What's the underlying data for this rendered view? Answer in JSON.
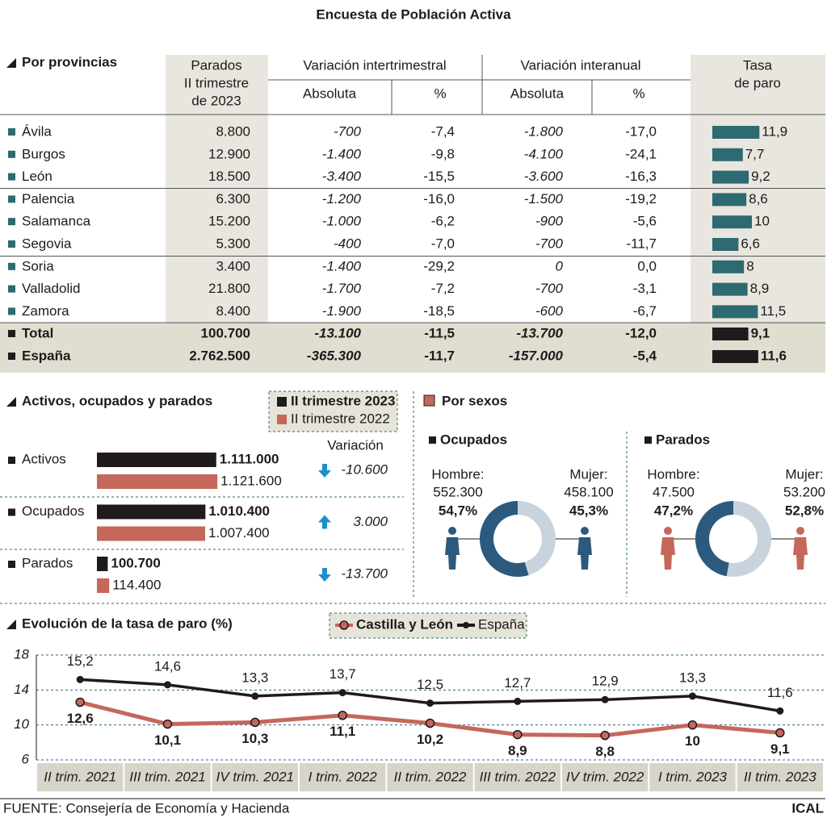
{
  "title": "Encuesta de Población Activa",
  "table": {
    "title": "Por provincias",
    "columns": {
      "parados": [
        "Parados",
        "II trimestre",
        "de 2023"
      ],
      "quarterly": "Variación intertrimestral",
      "annual": "Variación interanual",
      "sub": [
        "Absoluta",
        "%",
        "Absoluta",
        "%"
      ],
      "rate": [
        "Tasa",
        "de paro"
      ]
    },
    "bar_color": "#2d6a72",
    "total_bar_color": "#1f1a1b",
    "rows": [
      {
        "name": "Ávila",
        "cells": [
          "8.800",
          "-700",
          "-7,4",
          "-1.800",
          "-17,0"
        ],
        "rate": 11.9,
        "rate_label": "11,9"
      },
      {
        "name": "Burgos",
        "cells": [
          "12.900",
          "-1.400",
          "-9,8",
          "-4.100",
          "-24,1"
        ],
        "rate": 7.7,
        "rate_label": "7,7"
      },
      {
        "name": "León",
        "cells": [
          "18.500",
          "-3.400",
          "-15,5",
          "-3.600",
          "-16,3"
        ],
        "rate": 9.2,
        "rate_label": "9,2"
      },
      {
        "name": "Palencia",
        "cells": [
          "6.300",
          "-1.200",
          "-16,0",
          "-1.500",
          "-19,2"
        ],
        "rate": 8.6,
        "rate_label": "8,6"
      },
      {
        "name": "Salamanca",
        "cells": [
          "15.200",
          "-1.000",
          "-6,2",
          "-900",
          "-5,6"
        ],
        "rate": 10
      },
      {
        "name": "Segovia",
        "cells": [
          "5.300",
          "-400",
          "-7,0",
          "-700",
          "-11,7"
        ],
        "rate": 6.6,
        "rate_label": "6,6"
      },
      {
        "name": "Soria",
        "cells": [
          "3.400",
          "-1.400",
          "-29,2",
          "0",
          "0,0"
        ],
        "rate": 8
      },
      {
        "name": "Valladolid",
        "cells": [
          "21.800",
          "-1.700",
          "-7,2",
          "-700",
          "-3,1"
        ],
        "rate": 8.9,
        "rate_label": "8,9"
      },
      {
        "name": "Zamora",
        "cells": [
          "8.400",
          "-1.900",
          "-18,5",
          "-600",
          "-6,7"
        ],
        "rate": 11.5,
        "rate_label": "11,5"
      }
    ],
    "totals": [
      {
        "name": "Total",
        "cells": [
          "100.700",
          "-13.100",
          "-11,5",
          "-13.700",
          "-12,0"
        ],
        "rate": 9.1,
        "rate_label": "9,1"
      },
      {
        "name": "España",
        "cells": [
          "2.762.500",
          "-365.300",
          "-11,7",
          "-157.000",
          "-5,4"
        ],
        "rate": 11.6,
        "rate_label": "11,6"
      }
    ]
  },
  "chart_data": [
    {
      "type": "hbar",
      "title": "Activos, ocupados y parados",
      "categories": [
        "Activos",
        "Ocupados",
        "Parados"
      ],
      "series": [
        {
          "name": "II trimestre 2023",
          "color": "#1f1a1b",
          "values": [
            1111000,
            1010400,
            100700
          ],
          "value_labels": [
            "1.111.000",
            "1.010.400",
            "100.700"
          ]
        },
        {
          "name": "II trimestre 2022",
          "color": "#c5675b",
          "values": [
            1121600,
            1007400,
            114400
          ],
          "value_labels": [
            "1.121.600",
            "1.007.400",
            "114.400"
          ]
        }
      ],
      "variation_title": "Variación",
      "variation": [
        -10600,
        3000,
        -13700
      ],
      "variation_labels": [
        "-10.600",
        "3.000",
        "-13.700"
      ],
      "arrow_color": "#1f8fc9"
    },
    {
      "type": "donut",
      "title": "Ocupados",
      "categories": [
        "Hombre:",
        "Mujer:"
      ],
      "amounts": [
        "552.300",
        "458.100"
      ],
      "values": [
        54.7,
        45.3
      ],
      "value_labels": [
        "54,7%",
        "45,3%"
      ],
      "colors": [
        "#2b5a7e",
        "#c9d3de"
      ],
      "figure_color": "#2b5a7e"
    },
    {
      "type": "donut",
      "title": "Parados",
      "categories": [
        "Hombre:",
        "Mujer:"
      ],
      "amounts": [
        "47.500",
        "53.200"
      ],
      "values": [
        47.2,
        52.8
      ],
      "value_labels": [
        "47,2%",
        "52,8%"
      ],
      "colors": [
        "#2b5a7e",
        "#c9d3de"
      ],
      "figure_color": "#c5675b"
    },
    {
      "type": "line",
      "title": "Evolución de la tasa de paro (%)",
      "categories": [
        "II trim. 2021",
        "III trim. 2021",
        "IV trim. 2021",
        "I trim. 2022",
        "II trim. 2022",
        "III trim. 2022",
        "IV trim. 2022",
        "I trim. 2023",
        "II trim. 2023"
      ],
      "series": [
        {
          "name": "Castilla y León",
          "color": "#c5675b",
          "values": [
            12.6,
            10.1,
            10.3,
            11.1,
            10.2,
            8.9,
            8.8,
            10,
            9.1
          ],
          "value_labels": [
            "12,6",
            "10,1",
            "10,3",
            "11,1",
            "10,2",
            "8,9",
            "8,8",
            "10",
            "9,1"
          ]
        },
        {
          "name": "España",
          "color": "#1f1a1b",
          "values": [
            15.2,
            14.6,
            13.3,
            13.7,
            12.5,
            12.7,
            12.9,
            13.3,
            11.6
          ],
          "value_labels": [
            "15,2",
            "14,6",
            "13,3",
            "13,7",
            "12,5",
            "12,7",
            "12,9",
            "13,3",
            "11,6"
          ]
        }
      ],
      "ylim": [
        6,
        18
      ],
      "yticks": [
        6,
        10,
        14,
        18
      ],
      "grid": true
    }
  ],
  "sexes_title": "Por sexos",
  "source": "FUENTE: Consejería de Economía y Hacienda",
  "credit": "ICAL"
}
